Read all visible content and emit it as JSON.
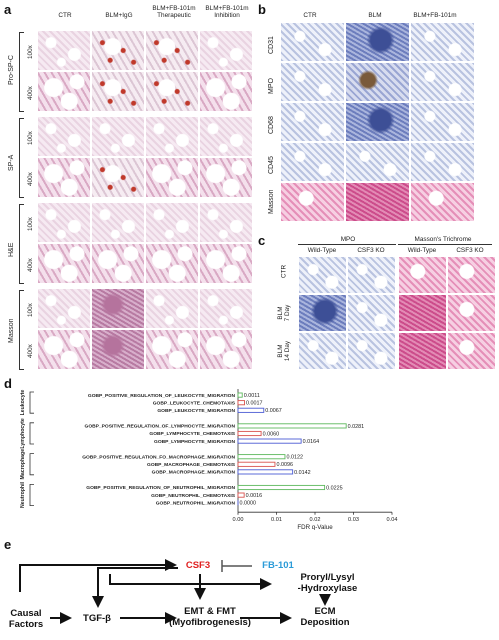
{
  "panels": {
    "a": "a",
    "b": "b",
    "c": "c",
    "d": "d",
    "e": "e"
  },
  "panel_a": {
    "columns": [
      "CTR",
      "BLM+IgG",
      "BLM+FB-101m\nTherapeutic",
      "BLM+FB-101m\nInhibition"
    ],
    "sections": [
      "Pro-SP-C",
      "SP-A",
      "H&E",
      "Masson"
    ],
    "magnifications": [
      "100x",
      "400x"
    ]
  },
  "panel_b": {
    "columns": [
      "CTR",
      "BLM",
      "BLM+FB-101m"
    ],
    "rows": [
      "CD31",
      "MPO",
      "CD68",
      "CD45",
      "Masson"
    ]
  },
  "panel_c": {
    "groups": [
      "MPO",
      "Masson's Trichrome"
    ],
    "columns": [
      "Wild-Type",
      "CSF3 KO",
      "Wild-Type",
      "CSF3 KO"
    ],
    "rows": [
      "CTR",
      "BLM\n7 Day",
      "BLM\n14 Day"
    ]
  },
  "panel_d": {
    "groups": [
      "Leukocyte",
      "Lymphocyte",
      "Macrophage",
      "Neutrophil"
    ],
    "colors": {
      "green": "#5cb85c",
      "red": "#d9534f",
      "blue": "#4a5bd4"
    },
    "xlabel": "FDR q-Value"
  },
  "chart_data": {
    "type": "bar",
    "orientation": "horizontal",
    "xlabel": "FDR q-Value",
    "xlim": [
      0.0,
      0.04
    ],
    "xticks": [
      "0.00",
      "0.01",
      "0.02",
      "0.03",
      "0.04"
    ],
    "categories": [
      "GOBP_POSITIVE_REGULATION_OF_LEUKOCYTE_MIGRATION",
      "GOBP_LEUKOCYTE_CHEMOTAXIS",
      "GOBP_LEUKOCYTE_MIGRATION",
      "GOBP_POSITIVE_REGULATION_OF_LYMPHOCYTE_MIGRATION",
      "GOBP_LYMPHOCYTE_CHEMOTAXIS",
      "GOBP_LYMPHOCYTE_MIGRATION",
      "GOBP_POSITIVE_REGULATION_FO_MACROPHAGE_MIGRATION",
      "GOBP_MACROPHAGE_CHEMOTAXIS",
      "GOBP_MACROPHAGE_MIGRATION",
      "GOBP_POSITIVE_REGULATION_OF_NEUTROPHIL_MIGRATION",
      "GOBP_NEUTROPHIL_CHEMOTAXIS",
      "GOBP_NEUTROPHIL_MIGRATION"
    ],
    "values": [
      0.0011,
      0.0017,
      0.0067,
      0.0281,
      0.006,
      0.0164,
      0.0122,
      0.0096,
      0.0142,
      0.0225,
      0.0016,
      0.0
    ],
    "value_labels": [
      "0.0011",
      "0.0017",
      "0.0067",
      "0.0281",
      "0.0060",
      "0.0164",
      "0.0122",
      "0.0096",
      "0.0142",
      "0.0225",
      "0.0016",
      "0.0000"
    ],
    "bar_colors": [
      "green",
      "red",
      "blue",
      "green",
      "red",
      "blue",
      "green",
      "red",
      "blue",
      "green",
      "red",
      "blue"
    ],
    "groups": [
      {
        "name": "Leukocyte",
        "indices": [
          0,
          1,
          2
        ]
      },
      {
        "name": "Lymphocyte",
        "indices": [
          3,
          4,
          5
        ]
      },
      {
        "name": "Macrophage",
        "indices": [
          6,
          7,
          8
        ]
      },
      {
        "name": "Neutrophil",
        "indices": [
          9,
          10,
          11
        ]
      }
    ]
  },
  "panel_e": {
    "causal": "Causal\nFactors",
    "tgf": "TGF-β",
    "csf3": "CSF3",
    "fb101": "FB-101",
    "prolyl": "Proryl/Lysyl\n-Hydroxylase",
    "emt": "EMT & FMT\n(Myofibrogenesis)",
    "ecm": "ECM\nDeposition",
    "csf3_color": "#e02020",
    "fb101_color": "#2b9bd8"
  }
}
